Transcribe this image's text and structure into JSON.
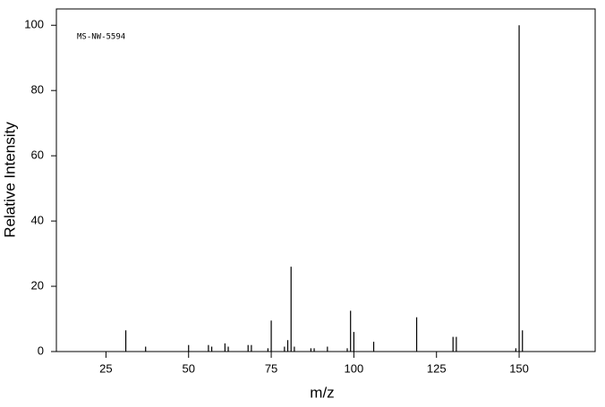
{
  "chart_data": {
    "type": "bar",
    "annotation": "MS-NW-5594",
    "x_label": "m/z",
    "y_label": "Relative Intensity",
    "x": [
      31,
      37,
      50,
      56,
      57,
      61,
      62,
      68,
      69,
      74,
      75,
      79,
      80,
      81,
      82,
      87,
      88,
      92,
      98,
      99,
      100,
      106,
      119,
      130,
      131,
      149,
      150,
      151
    ],
    "values": [
      6.5,
      1.5,
      2,
      2,
      1.5,
      2.5,
      1.5,
      2,
      2,
      1,
      9.5,
      1.5,
      3.5,
      26,
      1.5,
      1,
      1,
      1.5,
      1,
      12.5,
      6,
      3,
      10.5,
      4.5,
      4.5,
      1,
      100,
      6.5
    ],
    "color": "#000000",
    "xlim": [
      10,
      173
    ],
    "xticks": [
      25,
      50,
      75,
      100,
      125,
      150
    ],
    "ylim": [
      0,
      105
    ],
    "yticks": [
      0,
      20,
      40,
      60,
      80,
      100
    ],
    "grid": false
  }
}
